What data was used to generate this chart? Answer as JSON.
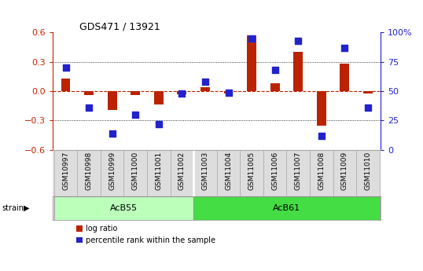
{
  "title": "GDS471 / 13921",
  "samples": [
    "GSM10997",
    "GSM10998",
    "GSM10999",
    "GSM11000",
    "GSM11001",
    "GSM11002",
    "GSM11003",
    "GSM11004",
    "GSM11005",
    "GSM11006",
    "GSM11007",
    "GSM11008",
    "GSM11009",
    "GSM11010"
  ],
  "log_ratio": [
    0.13,
    -0.04,
    -0.19,
    -0.04,
    -0.14,
    -0.03,
    0.04,
    -0.02,
    0.57,
    0.08,
    0.4,
    -0.35,
    0.28,
    -0.02
  ],
  "percentile": [
    70,
    36,
    14,
    30,
    22,
    48,
    58,
    49,
    95,
    68,
    93,
    12,
    87,
    36
  ],
  "groups": [
    {
      "label": "AcB55",
      "start": 0,
      "end": 5,
      "color": "#bbffbb"
    },
    {
      "label": "AcB61",
      "start": 6,
      "end": 13,
      "color": "#44dd44"
    }
  ],
  "ylim_left": [
    -0.6,
    0.6
  ],
  "ylim_right": [
    0,
    100
  ],
  "yticks_left": [
    -0.6,
    -0.3,
    0.0,
    0.3,
    0.6
  ],
  "yticks_right": [
    0,
    25,
    50,
    75,
    100
  ],
  "ytick_labels_right": [
    "0",
    "25",
    "50",
    "75",
    "100%"
  ],
  "hlines": [
    0.3,
    -0.3
  ],
  "bar_color": "#bb2200",
  "dot_color": "#2222cc",
  "left_axis_color": "#cc2200",
  "right_axis_color": "#2222cc",
  "strain_label": "strain",
  "legend_log_ratio": "log ratio",
  "legend_percentile": "percentile rank within the sample",
  "sep_index": 5.5
}
